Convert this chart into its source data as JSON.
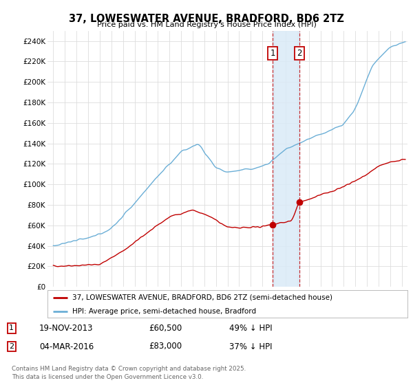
{
  "title": "37, LOWESWATER AVENUE, BRADFORD, BD6 2TZ",
  "subtitle": "Price paid vs. HM Land Registry's House Price Index (HPI)",
  "ylabel_ticks": [
    "£0",
    "£20K",
    "£40K",
    "£60K",
    "£80K",
    "£100K",
    "£120K",
    "£140K",
    "£160K",
    "£180K",
    "£200K",
    "£220K",
    "£240K"
  ],
  "ytick_values": [
    0,
    20000,
    40000,
    60000,
    80000,
    100000,
    120000,
    140000,
    160000,
    180000,
    200000,
    220000,
    240000
  ],
  "ylim": [
    0,
    250000
  ],
  "xlim_years": [
    1994.5,
    2025.5
  ],
  "hpi_color": "#6aaed6",
  "price_color": "#c00000",
  "marker1_x": 2013.89,
  "marker2_x": 2016.17,
  "marker1_price": 60500,
  "marker2_price": 83000,
  "marker1_date_label": "19-NOV-2013",
  "marker2_date_label": "04-MAR-2016",
  "marker1_pct": "49% ↓ HPI",
  "marker2_pct": "37% ↓ HPI",
  "legend_label_price": "37, LOWESWATER AVENUE, BRADFORD, BD6 2TZ (semi-detached house)",
  "legend_label_hpi": "HPI: Average price, semi-detached house, Bradford",
  "footnote": "Contains HM Land Registry data © Crown copyright and database right 2025.\nThis data is licensed under the Open Government Licence v3.0.",
  "background_color": "#ffffff",
  "grid_color": "#dddddd",
  "shade_color": "#daeaf7"
}
